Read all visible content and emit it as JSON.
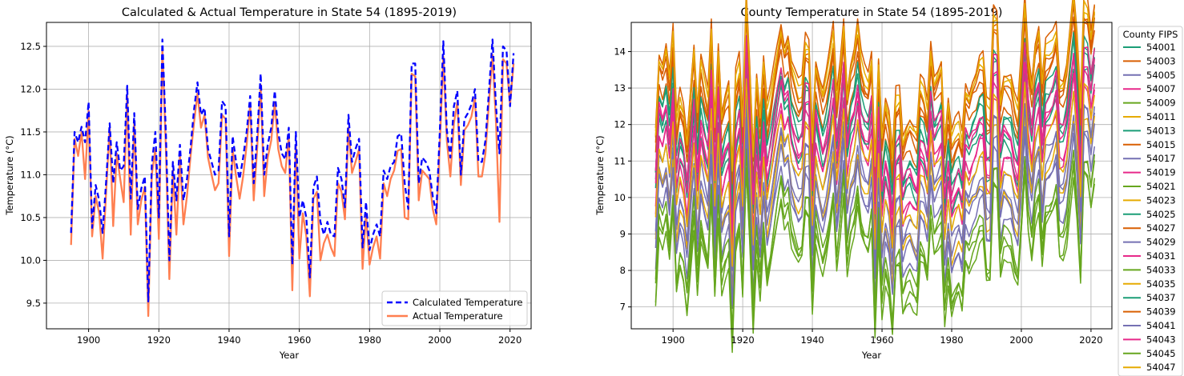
{
  "chart_data": [
    {
      "type": "line",
      "title": "Calculated & Actual Temperature in State 54 (1895-2019)",
      "xlabel": "Year",
      "ylabel": "Temperature (°C)",
      "xlim": [
        1888,
        2026
      ],
      "ylim": [
        9.2,
        12.78
      ],
      "x_ticks": [
        1900,
        1920,
        1940,
        1960,
        1980,
        2000,
        2020
      ],
      "y_ticks": [
        9.5,
        10.0,
        10.5,
        11.0,
        11.5,
        12.0,
        12.5
      ],
      "grid": true,
      "legend_position": "lower-right",
      "x_start": 1895,
      "series": [
        {
          "name": "Calculated Temperature",
          "color": "#0000ff",
          "style": "dashed",
          "values": [
            10.32,
            11.5,
            11.38,
            11.56,
            11.38,
            11.85,
            10.38,
            10.88,
            10.7,
            10.32,
            10.92,
            11.6,
            10.9,
            11.38,
            11.05,
            11.1,
            12.04,
            10.72,
            11.72,
            10.6,
            10.84,
            10.98,
            9.52,
            11.12,
            11.5,
            10.5,
            12.58,
            11.48,
            10.0,
            11.15,
            10.7,
            11.35,
            10.7,
            10.95,
            11.3,
            11.75,
            12.08,
            11.7,
            11.78,
            11.3,
            11.15,
            11.0,
            11.05,
            11.86,
            11.8,
            10.28,
            11.45,
            11.15,
            10.95,
            11.2,
            11.5,
            11.92,
            10.9,
            11.45,
            12.18,
            11.0,
            11.35,
            11.55,
            11.98,
            11.5,
            11.25,
            11.18,
            11.55,
            9.95,
            11.5,
            10.5,
            10.7,
            10.5,
            9.8,
            10.85,
            10.98,
            10.45,
            10.3,
            10.45,
            10.3,
            10.28,
            11.08,
            10.95,
            10.62,
            11.7,
            11.15,
            11.3,
            11.42,
            10.15,
            10.68,
            10.12,
            10.3,
            10.42,
            10.28,
            11.05,
            10.95,
            11.1,
            11.15,
            11.45,
            11.48,
            10.9,
            10.6,
            12.3,
            12.3,
            10.9,
            11.2,
            11.15,
            11.05,
            10.75,
            10.55,
            11.5,
            12.56,
            11.52,
            11.2,
            11.8,
            11.98,
            11.0,
            11.65,
            11.72,
            11.82,
            12.0,
            11.15,
            11.15,
            11.4,
            11.98,
            12.58,
            11.8,
            11.25,
            12.5,
            12.45,
            11.8,
            12.42
          ]
        },
        {
          "name": "Actual Temperature",
          "color": "#ff7f50",
          "style": "solid",
          "values": [
            10.18,
            11.42,
            11.22,
            11.5,
            10.95,
            11.75,
            10.28,
            10.75,
            10.55,
            10.02,
            10.8,
            11.55,
            10.4,
            11.25,
            10.95,
            10.68,
            11.92,
            10.3,
            11.62,
            10.42,
            10.7,
            10.86,
            9.35,
            11.0,
            11.3,
            10.25,
            12.48,
            11.3,
            9.78,
            11.05,
            10.3,
            11.22,
            10.42,
            10.75,
            11.2,
            11.6,
            11.95,
            11.55,
            11.7,
            11.2,
            11.0,
            10.82,
            10.9,
            11.7,
            11.65,
            10.05,
            11.3,
            10.98,
            10.72,
            10.98,
            11.35,
            11.82,
            10.7,
            11.3,
            12.05,
            10.75,
            11.2,
            11.4,
            11.85,
            11.3,
            11.1,
            11.02,
            11.45,
            9.65,
            11.35,
            10.02,
            10.55,
            10.28,
            9.58,
            10.72,
            10.8,
            10.0,
            10.2,
            10.3,
            10.15,
            10.05,
            10.9,
            10.8,
            10.48,
            11.55,
            11.02,
            11.15,
            11.3,
            9.9,
            10.55,
            9.95,
            10.15,
            10.28,
            10.02,
            10.9,
            10.75,
            10.95,
            11.05,
            11.28,
            11.3,
            10.5,
            10.48,
            12.18,
            12.15,
            10.7,
            11.05,
            11.0,
            10.95,
            10.6,
            10.42,
            11.35,
            12.38,
            11.4,
            10.98,
            11.6,
            11.85,
            10.88,
            11.52,
            11.58,
            11.68,
            11.9,
            10.98,
            10.98,
            11.25,
            11.85,
            12.4,
            11.6,
            10.45,
            12.35,
            12.3,
            11.82,
            12.3
          ]
        }
      ]
    },
    {
      "type": "line",
      "title": "County Temperature in State 54 (1895-2019)",
      "xlabel": "Year",
      "ylabel": "Temperature (°C)",
      "xlim": [
        1888,
        2026
      ],
      "ylim": [
        6.4,
        14.8
      ],
      "x_ticks": [
        1900,
        1920,
        1940,
        1960,
        1980,
        2000,
        2020
      ],
      "y_ticks": [
        7,
        8,
        9,
        10,
        11,
        12,
        13,
        14
      ],
      "grid": true,
      "legend_title": "County FIPS",
      "legend_position": "outside-right",
      "palette": [
        "#1b9e77",
        "#d95f02",
        "#7570b3",
        "#e7298a",
        "#66a61e",
        "#e6ab02"
      ],
      "series_offsets": [
        1.0,
        1.8,
        -0.8,
        0.2,
        -2.4,
        2.1,
        0.4,
        1.5,
        -1.5,
        0.0,
        -2.0,
        -1.0,
        0.8,
        2.4,
        -0.5,
        0.6,
        -2.2,
        -0.2,
        1.2,
        1.9,
        -1.2,
        0.9,
        -2.6,
        2.2
      ],
      "series": [
        {
          "name": "54001"
        },
        {
          "name": "54003"
        },
        {
          "name": "54005"
        },
        {
          "name": "54007"
        },
        {
          "name": "54009"
        },
        {
          "name": "54011"
        },
        {
          "name": "54013"
        },
        {
          "name": "54015"
        },
        {
          "name": "54017"
        },
        {
          "name": "54019"
        },
        {
          "name": "54021"
        },
        {
          "name": "54023"
        },
        {
          "name": "54025"
        },
        {
          "name": "54027"
        },
        {
          "name": "54029"
        },
        {
          "name": "54031"
        },
        {
          "name": "54033"
        },
        {
          "name": "54035"
        },
        {
          "name": "54037"
        },
        {
          "name": "54039"
        },
        {
          "name": "54041"
        },
        {
          "name": "54043"
        },
        {
          "name": "54045"
        },
        {
          "name": "54047"
        }
      ]
    }
  ]
}
